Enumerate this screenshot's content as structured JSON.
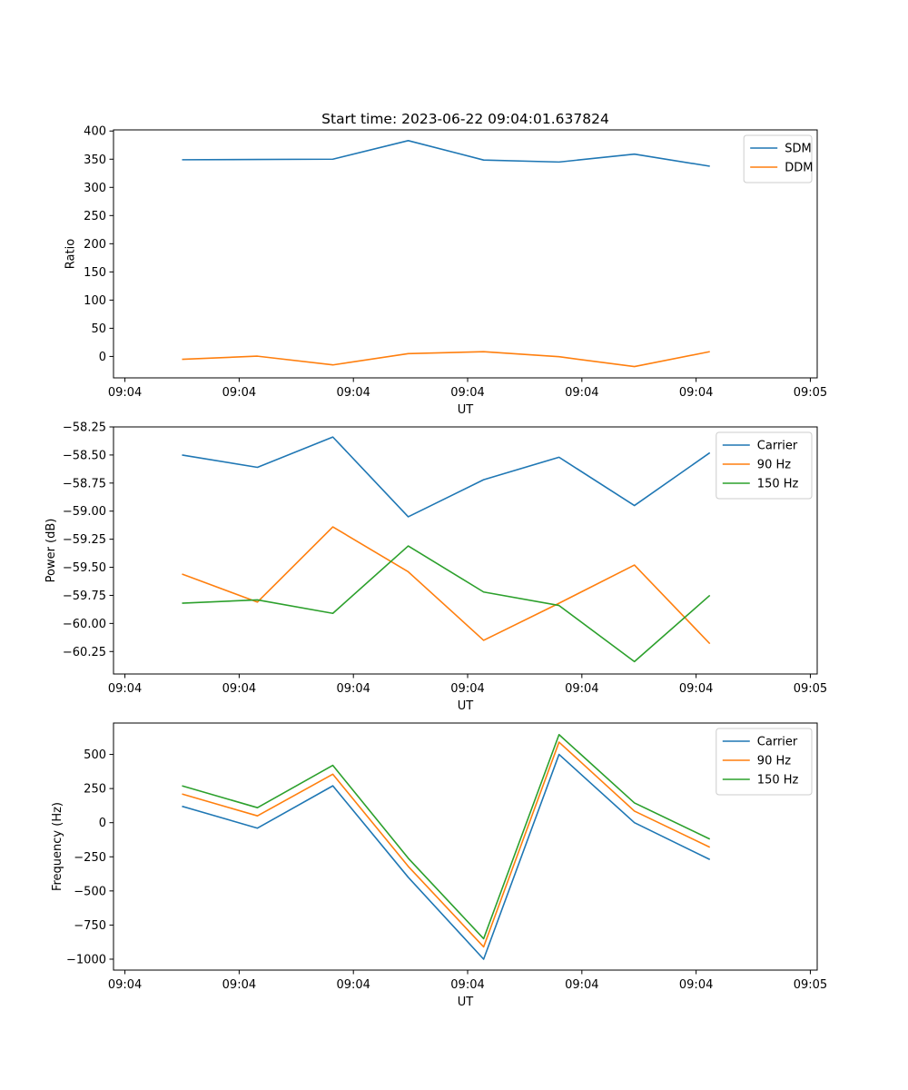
{
  "figure": {
    "title": "Start time: 2023-06-22 09:04:01.637824"
  },
  "chart_data": [
    {
      "type": "line",
      "title": "Start time: 2023-06-22 09:04:01.637824",
      "xlabel": "UT",
      "ylabel": "Ratio",
      "x_tick_labels": [
        "09:04",
        "09:04",
        "09:04",
        "09:04",
        "09:04",
        "09:04",
        "09:05"
      ],
      "x_ticks_seconds": [
        0,
        10,
        20,
        30,
        40,
        50,
        60
      ],
      "y_ticks": [
        0,
        50,
        100,
        150,
        200,
        250,
        300,
        350,
        400
      ],
      "y_tick_labels": [
        "0",
        "50",
        "100",
        "150",
        "200",
        "250",
        "300",
        "350",
        "400"
      ],
      "xlim_seconds": [
        -1.0,
        60.6
      ],
      "ylim": [
        -38,
        402
      ],
      "x_seconds": [
        5.0,
        11.6,
        18.2,
        24.8,
        31.4,
        38.0,
        44.6,
        51.2
      ],
      "legend_position": "upper right",
      "series": [
        {
          "name": "SDM",
          "color": "#1f77b4",
          "values": [
            349,
            349.5,
            350,
            383,
            348.5,
            345,
            359,
            337.5
          ]
        },
        {
          "name": "DDM",
          "color": "#ff7f0e",
          "values": [
            -5,
            0.5,
            -15,
            5,
            8.5,
            -0.5,
            -18,
            8.5
          ]
        }
      ]
    },
    {
      "type": "line",
      "title": "",
      "xlabel": "UT",
      "ylabel": "Power (dB)",
      "x_tick_labels": [
        "09:04",
        "09:04",
        "09:04",
        "09:04",
        "09:04",
        "09:04",
        "09:05"
      ],
      "x_ticks_seconds": [
        0,
        10,
        20,
        30,
        40,
        50,
        60
      ],
      "y_ticks": [
        -60.25,
        -60.0,
        -59.75,
        -59.5,
        -59.25,
        -59.0,
        -58.75,
        -58.5,
        -58.25
      ],
      "y_tick_labels": [
        "−60.25",
        "−60.00",
        "−59.75",
        "−59.50",
        "−59.25",
        "−59.00",
        "−58.75",
        "−58.50",
        "−58.25"
      ],
      "xlim_seconds": [
        -1.0,
        60.6
      ],
      "ylim": [
        -60.45,
        -58.25
      ],
      "x_seconds": [
        5.0,
        11.6,
        18.2,
        24.8,
        31.4,
        38.0,
        44.6,
        51.2
      ],
      "legend_position": "upper right",
      "series": [
        {
          "name": "Carrier",
          "color": "#1f77b4",
          "values": [
            -58.5,
            -58.61,
            -58.34,
            -59.05,
            -58.72,
            -58.52,
            -58.95,
            -58.48
          ]
        },
        {
          "name": "90 Hz",
          "color": "#ff7f0e",
          "values": [
            -59.56,
            -59.81,
            -59.14,
            -59.54,
            -60.15,
            -59.82,
            -59.48,
            -60.18
          ]
        },
        {
          "name": "150 Hz",
          "color": "#2ca02c",
          "values": [
            -59.82,
            -59.79,
            -59.91,
            -59.31,
            -59.72,
            -59.84,
            -60.34,
            -59.75
          ]
        }
      ]
    },
    {
      "type": "line",
      "title": "",
      "xlabel": "UT",
      "ylabel": "Frequency (Hz)",
      "x_tick_labels": [
        "09:04",
        "09:04",
        "09:04",
        "09:04",
        "09:04",
        "09:04",
        "09:05"
      ],
      "x_ticks_seconds": [
        0,
        10,
        20,
        30,
        40,
        50,
        60
      ],
      "y_ticks": [
        -1000,
        -750,
        -500,
        -250,
        0,
        250,
        500
      ],
      "y_tick_labels": [
        "−1000",
        "−750",
        "−500",
        "−250",
        "0",
        "250",
        "500"
      ],
      "xlim_seconds": [
        -1.0,
        60.6
      ],
      "ylim": [
        -1080,
        730
      ],
      "x_seconds": [
        5.0,
        11.6,
        18.2,
        24.8,
        31.4,
        38.0,
        44.6,
        51.2
      ],
      "legend_position": "upper right",
      "series": [
        {
          "name": "Carrier",
          "color": "#1f77b4",
          "values": [
            120,
            -40,
            270,
            -400,
            -1000,
            500,
            0,
            -270
          ]
        },
        {
          "name": "90 Hz",
          "color": "#ff7f0e",
          "values": [
            210,
            50,
            355,
            -320,
            -910,
            590,
            85,
            -180
          ]
        },
        {
          "name": "150 Hz",
          "color": "#2ca02c",
          "values": [
            270,
            110,
            420,
            -260,
            -850,
            645,
            145,
            -120
          ]
        }
      ]
    }
  ]
}
